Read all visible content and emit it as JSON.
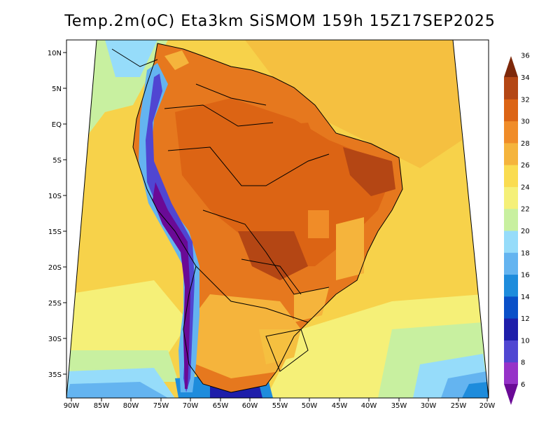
{
  "title": "Temp.2m(oC) Eta3km SiSMOM 159h 15Z17SEP2025",
  "lat_labels": [
    "10N",
    "5N",
    "EQ",
    "5S",
    "10S",
    "15S",
    "20S",
    "25S",
    "30S",
    "35S"
  ],
  "lon_labels": [
    "90W",
    "85W",
    "80W",
    "75W",
    "70W",
    "65W",
    "60W",
    "55W",
    "50W",
    "45W",
    "40W",
    "35W",
    "30W",
    "25W",
    "20W"
  ],
  "colorbar": {
    "labels": [
      "6",
      "8",
      "10",
      "12",
      "14",
      "16",
      "18",
      "20",
      "22",
      "24",
      "26",
      "28",
      "30",
      "32",
      "34",
      "36"
    ],
    "colors": [
      "#6a0a96",
      "#9632c8",
      "#5046d2",
      "#1e1eaa",
      "#0a50c8",
      "#1e8cdc",
      "#64b4f0",
      "#96dcfa",
      "#c8f0a0",
      "#f5f078",
      "#fadc50",
      "#f5b43c",
      "#f08c28",
      "#dc6414",
      "#b44614",
      "#7d280a"
    ]
  }
}
